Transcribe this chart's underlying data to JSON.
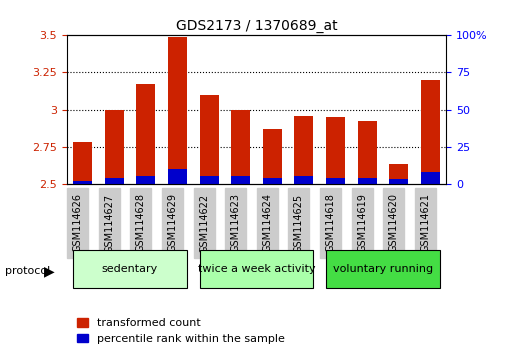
{
  "title": "GDS2173 / 1370689_at",
  "samples": [
    "GSM114626",
    "GSM114627",
    "GSM114628",
    "GSM114629",
    "GSM114622",
    "GSM114623",
    "GSM114624",
    "GSM114625",
    "GSM114618",
    "GSM114619",
    "GSM114620",
    "GSM114621"
  ],
  "transformed_count": [
    2.78,
    3.0,
    3.17,
    3.49,
    3.1,
    3.0,
    2.87,
    2.96,
    2.95,
    2.92,
    2.63,
    3.2
  ],
  "percentile_rank": [
    2,
    4,
    5,
    10,
    5,
    5,
    4,
    5,
    4,
    4,
    3,
    8
  ],
  "ylim_left": [
    2.5,
    3.5
  ],
  "ylim_right": [
    0,
    100
  ],
  "yticks_left": [
    2.5,
    2.75,
    3.0,
    3.25,
    3.5
  ],
  "yticks_right": [
    0,
    25,
    50,
    75,
    100
  ],
  "ytick_labels_left": [
    "2.5",
    "2.75",
    "3",
    "3.25",
    "3.5"
  ],
  "ytick_labels_right": [
    "0",
    "25",
    "50",
    "75",
    "100%"
  ],
  "bar_color_red": "#cc2200",
  "bar_color_blue": "#0000cc",
  "grid_color": "#000000",
  "protocol_groups": [
    {
      "label": "sedentary",
      "start": 0,
      "end": 3,
      "color": "#ccffcc"
    },
    {
      "label": "twice a week activity",
      "start": 4,
      "end": 7,
      "color": "#aaffaa"
    },
    {
      "label": "voluntary running",
      "start": 8,
      "end": 11,
      "color": "#44dd44"
    }
  ],
  "protocol_label": "protocol",
  "legend_red": "transformed count",
  "legend_blue": "percentile rank within the sample",
  "bar_width": 0.6,
  "base_value": 2.5,
  "percentile_scale": 0.01
}
